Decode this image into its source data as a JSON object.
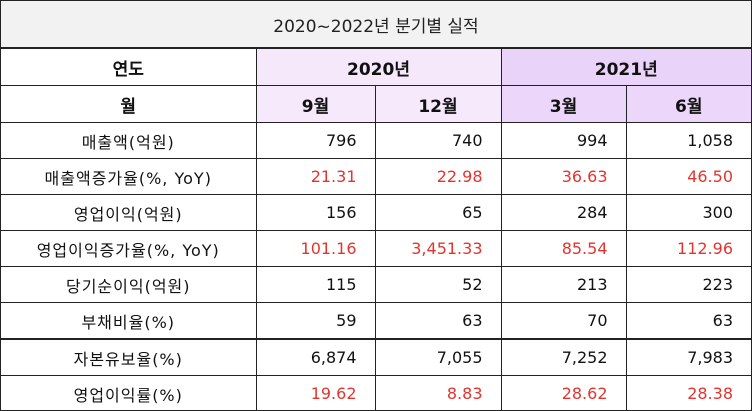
{
  "title": "2020~2022년 분기별 실적",
  "header": {
    "year_label": "연도",
    "year_2020": "2020년",
    "year_2021": "2021년",
    "month_label": "월",
    "months": [
      "9월",
      "12월",
      "3월",
      "6월"
    ]
  },
  "rows": [
    {
      "label": "매출액(억원)",
      "values": [
        "796",
        "740",
        "994",
        "1,058"
      ]
    },
    {
      "label": "매출액증가율(%, YoY)",
      "values": [
        "21.31",
        "22.98",
        "36.63",
        "46.50"
      ]
    },
    {
      "label": "영업이익(억원)",
      "values": [
        "156",
        "65",
        "284",
        "300"
      ]
    },
    {
      "label": "영업이익증가율(%, YoY)",
      "values": [
        "101.16",
        "3,451.33",
        "85.54",
        "112.96"
      ]
    },
    {
      "label": "당기순이익(억원)",
      "values": [
        "115",
        "52",
        "213",
        "223"
      ]
    },
    {
      "label": "부채비율(%)",
      "values": [
        "59",
        "63",
        "70",
        "63"
      ]
    },
    {
      "label": "자본유보율(%)",
      "values": [
        "6,874",
        "7,055",
        "7,252",
        "7,983"
      ]
    },
    {
      "label": "영업이익률(%)",
      "values": [
        "19.62",
        "8.83",
        "28.62",
        "28.38"
      ]
    }
  ],
  "colors": {
    "highlight_red": "#e3342f",
    "header_2020": "#f5e8fb",
    "header_2021": "#ead3f8",
    "title_bg": "#f2f2f2"
  }
}
